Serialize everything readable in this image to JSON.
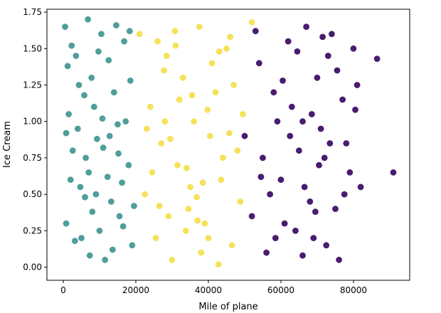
{
  "chart_data": {
    "type": "scatter",
    "title": "",
    "xlabel": "Mile of plane",
    "ylabel": "Ice Cream",
    "xlim": [
      -4500,
      95500
    ],
    "ylim": [
      -0.09,
      1.77
    ],
    "x_ticks": [
      0,
      20000,
      40000,
      60000,
      80000
    ],
    "x_tick_labels": [
      "0",
      "20000",
      "40000",
      "60000",
      "80000"
    ],
    "y_ticks": [
      0.0,
      0.25,
      0.5,
      0.75,
      1.0,
      1.25,
      1.5,
      1.75
    ],
    "y_tick_labels": [
      "0.00",
      "0.25",
      "0.50",
      "0.75",
      "1.00",
      "1.25",
      "1.50",
      "1.75"
    ],
    "grid": false,
    "legend": "none",
    "series": [
      {
        "color": "#4f9e9a",
        "points": [
          [
            500,
            1.65
          ],
          [
            1500,
            1.05
          ],
          [
            800,
            0.3
          ],
          [
            2000,
            0.6
          ],
          [
            3500,
            1.45
          ],
          [
            5000,
            0.2
          ],
          [
            6200,
            0.75
          ],
          [
            7800,
            1.3
          ],
          [
            9000,
            0.5
          ],
          [
            10500,
            1.6
          ],
          [
            11500,
            0.05
          ],
          [
            12800,
            0.9
          ],
          [
            14000,
            1.2
          ],
          [
            15500,
            0.35
          ],
          [
            16800,
            1.55
          ],
          [
            18000,
            0.7
          ],
          [
            19000,
            0.15
          ],
          [
            4000,
            0.95
          ],
          [
            8500,
            1.1
          ],
          [
            13200,
            0.45
          ],
          [
            2600,
            0.8
          ],
          [
            6800,
            1.7
          ],
          [
            10000,
            0.25
          ],
          [
            17200,
            1.0
          ],
          [
            1200,
            1.38
          ],
          [
            4700,
            0.55
          ],
          [
            7300,
            0.08
          ],
          [
            9700,
            1.48
          ],
          [
            12200,
            0.62
          ],
          [
            15000,
            0.98
          ],
          [
            18500,
            1.28
          ],
          [
            3200,
            0.18
          ],
          [
            5800,
            1.18
          ],
          [
            11000,
            0.82
          ],
          [
            14600,
            1.66
          ],
          [
            16200,
            0.58
          ],
          [
            800,
            0.92
          ],
          [
            19500,
            0.42
          ],
          [
            8000,
            0.38
          ],
          [
            13600,
            0.12
          ],
          [
            2300,
            1.52
          ],
          [
            6000,
            0.48
          ],
          [
            9300,
            0.88
          ],
          [
            12500,
            1.42
          ],
          [
            16500,
            0.28
          ],
          [
            4300,
            1.25
          ],
          [
            7000,
            0.65
          ],
          [
            10800,
            1.02
          ],
          [
            15200,
            0.78
          ],
          [
            18300,
            1.62
          ]
        ]
      },
      {
        "color": "#f5e25a",
        "points": [
          [
            21000,
            1.6
          ],
          [
            22500,
            0.5
          ],
          [
            24000,
            1.1
          ],
          [
            25500,
            0.2
          ],
          [
            27000,
            0.85
          ],
          [
            28500,
            1.45
          ],
          [
            30000,
            0.05
          ],
          [
            31500,
            0.7
          ],
          [
            33000,
            1.3
          ],
          [
            34500,
            0.4
          ],
          [
            36000,
            1.0
          ],
          [
            37500,
            1.65
          ],
          [
            39000,
            0.3
          ],
          [
            40500,
            0.9
          ],
          [
            42000,
            1.2
          ],
          [
            43500,
            0.6
          ],
          [
            45000,
            1.5
          ],
          [
            46500,
            0.15
          ],
          [
            48000,
            0.8
          ],
          [
            49500,
            1.05
          ],
          [
            23000,
            0.95
          ],
          [
            26000,
            1.55
          ],
          [
            29000,
            0.35
          ],
          [
            32000,
            1.15
          ],
          [
            35000,
            0.55
          ],
          [
            38000,
            0.1
          ],
          [
            41000,
            1.4
          ],
          [
            44000,
            0.75
          ],
          [
            47000,
            1.25
          ],
          [
            52000,
            1.68
          ],
          [
            24500,
            0.65
          ],
          [
            27800,
            1.35
          ],
          [
            30800,
            1.62
          ],
          [
            33800,
            0.25
          ],
          [
            36800,
            0.48
          ],
          [
            39800,
            1.08
          ],
          [
            42800,
            0.02
          ],
          [
            45800,
            0.92
          ],
          [
            29500,
            0.88
          ],
          [
            34000,
            0.68
          ],
          [
            38500,
            0.58
          ],
          [
            31000,
            1.52
          ],
          [
            26500,
            0.42
          ],
          [
            35500,
            1.18
          ],
          [
            40000,
            0.2
          ],
          [
            43000,
            1.48
          ],
          [
            28000,
            1.0
          ],
          [
            37000,
            0.32
          ],
          [
            46000,
            1.58
          ],
          [
            48800,
            0.45
          ]
        ]
      },
      {
        "color": "#481c6e",
        "points": [
          [
            50000,
            0.9
          ],
          [
            52000,
            0.35
          ],
          [
            54000,
            1.4
          ],
          [
            56000,
            0.1
          ],
          [
            58000,
            1.2
          ],
          [
            60000,
            0.6
          ],
          [
            62000,
            1.55
          ],
          [
            64000,
            0.25
          ],
          [
            66000,
            1.0
          ],
          [
            68000,
            0.45
          ],
          [
            70000,
            1.3
          ],
          [
            72000,
            0.75
          ],
          [
            74000,
            1.6
          ],
          [
            76000,
            0.05
          ],
          [
            78000,
            0.85
          ],
          [
            80000,
            1.5
          ],
          [
            82000,
            0.55
          ],
          [
            86500,
            1.43
          ],
          [
            91000,
            0.65
          ],
          [
            55000,
            0.75
          ],
          [
            59000,
            1.0
          ],
          [
            61000,
            0.3
          ],
          [
            63000,
            1.1
          ],
          [
            65000,
            0.8
          ],
          [
            67000,
            1.65
          ],
          [
            69000,
            0.2
          ],
          [
            71000,
            0.95
          ],
          [
            73000,
            1.45
          ],
          [
            75000,
            0.4
          ],
          [
            77000,
            1.15
          ],
          [
            79000,
            0.65
          ],
          [
            81000,
            1.25
          ],
          [
            57000,
            0.5
          ],
          [
            53000,
            1.62
          ],
          [
            68500,
            1.05
          ],
          [
            72500,
            0.15
          ],
          [
            66500,
            0.55
          ],
          [
            62500,
            0.9
          ],
          [
            70500,
            0.7
          ],
          [
            75500,
            1.35
          ],
          [
            58500,
            0.2
          ],
          [
            64500,
            1.48
          ],
          [
            69500,
            0.38
          ],
          [
            73500,
            0.85
          ],
          [
            60500,
            1.28
          ],
          [
            77500,
            0.5
          ],
          [
            54500,
            0.62
          ],
          [
            66000,
            0.08
          ],
          [
            71500,
            1.58
          ],
          [
            80500,
            1.08
          ]
        ]
      }
    ]
  }
}
